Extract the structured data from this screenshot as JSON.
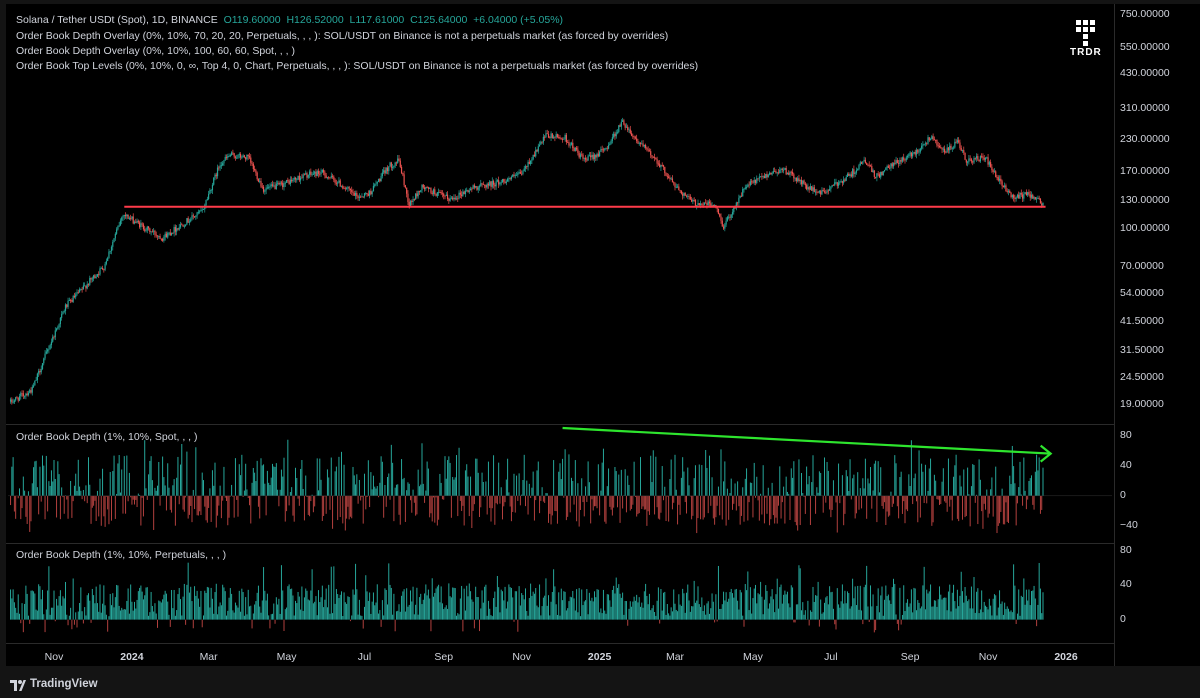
{
  "legend": {
    "symbol": "Solana / Tether USDt (Spot), 1D, BINANCE",
    "open": "O119.60000",
    "high": "H126.52000",
    "low": "L117.61000",
    "close": "C125.64000",
    "change": "+6.04000 (+5.05%)",
    "overlay_1": "Order Book Depth Overlay (0%, 10%, 70, 20, 20, Perpetuals, , , ): SOL/USDT on Binance is not a perpetuals market (as forced by overrides)",
    "overlay_2": "Order Book Depth Overlay (0%, 10%, 100, 60, 60, Spot, , , )",
    "overlay_3": "Order Book Top Levels (0%, 10%, 0, ∞, Top 4, 0, Chart, Perpetuals, , , ): SOL/USDT on Binance is not a perpetuals market (as forced by overrides)"
  },
  "logo": {
    "text": "TRDR"
  },
  "footer": {
    "brand": "TradingView"
  },
  "colors": {
    "up": "#26a69a",
    "down": "#ef5350",
    "support_line": "#ff3b4a",
    "trend_arrow": "#2ee52e",
    "spot_pos": "#26a69a",
    "spot_neg": "#b2403e",
    "perp_pos": "#26a69a"
  },
  "chart_data": [
    {
      "type": "candlestick",
      "name": "price",
      "scale": "log",
      "ylim": [
        16.5,
        800
      ],
      "price_tick_labels": [
        "750.00000",
        "550.00000",
        "430.00000",
        "310.00000",
        "230.00000",
        "170.00000",
        "130.00000",
        "100.00000",
        "70.00000",
        "54.00000",
        "41.50000",
        "31.50000",
        "24.50000",
        "19.00000"
      ],
      "price_ticks": [
        750,
        550,
        430,
        310,
        230,
        170,
        130,
        100,
        70,
        54,
        41.5,
        31.5,
        24.5,
        19
      ],
      "x_tick_labels": [
        {
          "label": "Nov",
          "date": "2023-11-01",
          "bold": false
        },
        {
          "label": "2024",
          "date": "2024-01-01",
          "bold": true
        },
        {
          "label": "Mar",
          "date": "2024-03-01",
          "bold": false
        },
        {
          "label": "May",
          "date": "2024-05-01",
          "bold": false
        },
        {
          "label": "Jul",
          "date": "2024-07-01",
          "bold": false
        },
        {
          "label": "Sep",
          "date": "2024-09-01",
          "bold": false
        },
        {
          "label": "Nov",
          "date": "2024-11-01",
          "bold": false
        },
        {
          "label": "2025",
          "date": "2025-01-01",
          "bold": true
        },
        {
          "label": "Mar",
          "date": "2025-03-01",
          "bold": false
        },
        {
          "label": "May",
          "date": "2025-05-01",
          "bold": false
        },
        {
          "label": "Jul",
          "date": "2025-07-01",
          "bold": false
        },
        {
          "label": "Sep",
          "date": "2025-09-01",
          "bold": false
        },
        {
          "label": "Nov",
          "date": "2025-11-01",
          "bold": false
        },
        {
          "label": "2026",
          "date": "2026-01-01",
          "bold": true
        }
      ],
      "price_path_anchors": [
        {
          "date": "2023-09-28",
          "price": 19.5
        },
        {
          "date": "2023-10-15",
          "price": 22
        },
        {
          "date": "2023-10-25",
          "price": 30
        },
        {
          "date": "2023-11-10",
          "price": 48
        },
        {
          "date": "2023-11-25",
          "price": 58
        },
        {
          "date": "2023-12-10",
          "price": 70
        },
        {
          "date": "2023-12-25",
          "price": 115
        },
        {
          "date": "2024-01-12",
          "price": 100
        },
        {
          "date": "2024-01-25",
          "price": 92
        },
        {
          "date": "2024-02-10",
          "price": 105
        },
        {
          "date": "2024-02-25",
          "price": 118
        },
        {
          "date": "2024-03-10",
          "price": 185
        },
        {
          "date": "2024-03-18",
          "price": 200
        },
        {
          "date": "2024-04-01",
          "price": 195
        },
        {
          "date": "2024-04-13",
          "price": 145
        },
        {
          "date": "2024-04-25",
          "price": 150
        },
        {
          "date": "2024-05-15",
          "price": 165
        },
        {
          "date": "2024-05-28",
          "price": 170
        },
        {
          "date": "2024-06-10",
          "price": 155
        },
        {
          "date": "2024-06-25",
          "price": 135
        },
        {
          "date": "2024-07-05",
          "price": 140
        },
        {
          "date": "2024-07-20",
          "price": 180
        },
        {
          "date": "2024-07-28",
          "price": 190
        },
        {
          "date": "2024-08-05",
          "price": 125
        },
        {
          "date": "2024-08-15",
          "price": 148
        },
        {
          "date": "2024-09-06",
          "price": 132
        },
        {
          "date": "2024-09-25",
          "price": 148
        },
        {
          "date": "2024-10-15",
          "price": 155
        },
        {
          "date": "2024-11-01",
          "price": 168
        },
        {
          "date": "2024-11-20",
          "price": 240
        },
        {
          "date": "2024-12-05",
          "price": 235
        },
        {
          "date": "2024-12-20",
          "price": 190
        },
        {
          "date": "2025-01-05",
          "price": 210
        },
        {
          "date": "2025-01-19",
          "price": 275
        },
        {
          "date": "2025-01-30",
          "price": 230
        },
        {
          "date": "2025-02-15",
          "price": 190
        },
        {
          "date": "2025-03-01",
          "price": 150
        },
        {
          "date": "2025-03-15",
          "price": 128
        },
        {
          "date": "2025-04-01",
          "price": 125
        },
        {
          "date": "2025-04-08",
          "price": 102
        },
        {
          "date": "2025-04-25",
          "price": 148
        },
        {
          "date": "2025-05-15",
          "price": 170
        },
        {
          "date": "2025-05-25",
          "price": 175
        },
        {
          "date": "2025-06-15",
          "price": 145
        },
        {
          "date": "2025-06-25",
          "price": 140
        },
        {
          "date": "2025-07-15",
          "price": 165
        },
        {
          "date": "2025-07-28",
          "price": 190
        },
        {
          "date": "2025-08-05",
          "price": 162
        },
        {
          "date": "2025-08-20",
          "price": 185
        },
        {
          "date": "2025-09-05",
          "price": 205
        },
        {
          "date": "2025-09-18",
          "price": 240
        },
        {
          "date": "2025-09-28",
          "price": 205
        },
        {
          "date": "2025-10-08",
          "price": 225
        },
        {
          "date": "2025-10-15",
          "price": 190
        },
        {
          "date": "2025-10-30",
          "price": 195
        },
        {
          "date": "2025-11-08",
          "price": 160
        },
        {
          "date": "2025-11-20",
          "price": 135
        },
        {
          "date": "2025-12-05",
          "price": 138
        },
        {
          "date": "2025-12-14",
          "price": 125.64
        }
      ],
      "support_line": {
        "start": "2023-12-26",
        "end": "2025-12-16",
        "price": 123
      }
    },
    {
      "type": "bar",
      "name": "Order Book Depth (1%, 10%, Spot, , , )",
      "ylim": [
        -60,
        90
      ],
      "y_ticks": [
        80,
        40,
        0,
        -40
      ],
      "y_tick_labels": [
        "80",
        "40",
        "0",
        "−40"
      ],
      "trend_arrow": {
        "start": {
          "date": "2024-12-03",
          "value": 90
        },
        "end": {
          "date": "2025-12-20",
          "value": 56
        }
      }
    },
    {
      "type": "bar",
      "name": "Order Book Depth (1%, 10%, Perpetuals, , , )",
      "ylim": [
        -25,
        85
      ],
      "y_ticks": [
        80,
        40,
        0
      ],
      "y_tick_labels": [
        "80",
        "40",
        "0"
      ]
    }
  ]
}
